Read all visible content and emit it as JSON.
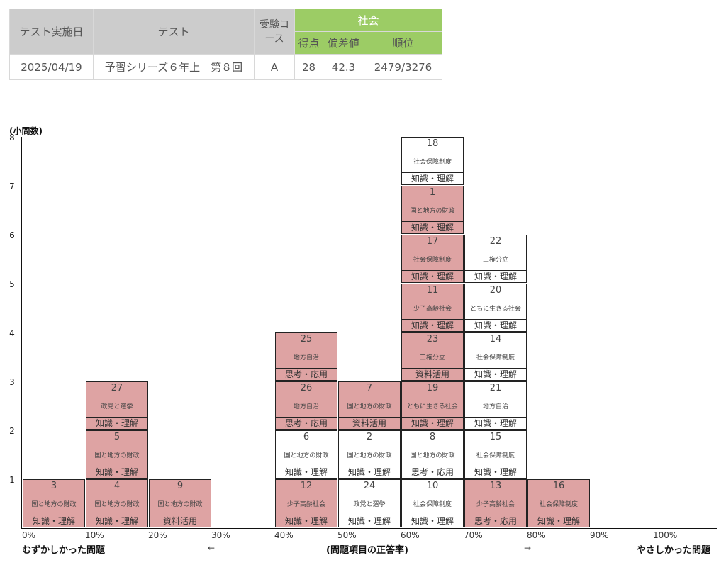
{
  "summary": {
    "headers": {
      "date": "テスト実施日",
      "test": "テスト",
      "course": "受験コース",
      "subject": "社会",
      "score": "得点",
      "deviation": "偏差値",
      "rank": "順位"
    },
    "row": {
      "date": "2025/04/19",
      "test": "予習シリーズ６年上　第８回",
      "course": "A",
      "score": "28",
      "deviation": "42.3",
      "rank": "2479/3276"
    },
    "colors": {
      "header_gray": "#cccccc",
      "header_green": "#9ccc65"
    }
  },
  "chart_data": {
    "type": "stacked-box-histogram",
    "ylabel": "(小問数)",
    "y_ticks": [
      "1",
      "2",
      "3",
      "4",
      "5",
      "6",
      "7",
      "8"
    ],
    "x_ticks": [
      "0%",
      "10%",
      "20%",
      "30%",
      "40%",
      "50%",
      "60%",
      "70%",
      "80%",
      "90%",
      "100%"
    ],
    "footer": {
      "left": "むずかしかった問題",
      "center": "(問題項目の正答率)",
      "right": "やさしかった問題",
      "arrow_left": "←",
      "arrow_right": "→"
    },
    "colors": {
      "wrong": "#dea3a3",
      "correct": "#ffffff"
    },
    "bins": [
      {
        "bin": "0%",
        "items": [
          {
            "num": "3",
            "topic": "国と地方の財政",
            "category": "知識・理解",
            "status": "wrong"
          }
        ]
      },
      {
        "bin": "10%",
        "items": [
          {
            "num": "4",
            "topic": "国と地方の財政",
            "category": "知識・理解",
            "status": "wrong"
          },
          {
            "num": "5",
            "topic": "国と地方の財政",
            "category": "知識・理解",
            "status": "wrong"
          },
          {
            "num": "27",
            "topic": "政党と選挙",
            "category": "知識・理解",
            "status": "wrong"
          }
        ]
      },
      {
        "bin": "20%",
        "items": [
          {
            "num": "9",
            "topic": "国と地方の財政",
            "category": "資料活用",
            "status": "wrong"
          }
        ]
      },
      {
        "bin": "30%",
        "items": []
      },
      {
        "bin": "40%",
        "items": [
          {
            "num": "12",
            "topic": "少子高齢社会",
            "category": "知識・理解",
            "status": "wrong"
          },
          {
            "num": "6",
            "topic": "国と地方の財政",
            "category": "知識・理解",
            "status": "correct"
          },
          {
            "num": "26",
            "topic": "地方自治",
            "category": "思考・応用",
            "status": "wrong"
          },
          {
            "num": "25",
            "topic": "地方自治",
            "category": "思考・応用",
            "status": "wrong"
          }
        ]
      },
      {
        "bin": "50%",
        "items": [
          {
            "num": "24",
            "topic": "政党と選挙",
            "category": "知識・理解",
            "status": "correct"
          },
          {
            "num": "2",
            "topic": "国と地方の財政",
            "category": "知識・理解",
            "status": "correct"
          },
          {
            "num": "7",
            "topic": "国と地方の財政",
            "category": "資料活用",
            "status": "wrong"
          }
        ]
      },
      {
        "bin": "60%",
        "items": [
          {
            "num": "10",
            "topic": "社会保障制度",
            "category": "知識・理解",
            "status": "correct"
          },
          {
            "num": "8",
            "topic": "国と地方の財政",
            "category": "思考・応用",
            "status": "correct"
          },
          {
            "num": "19",
            "topic": "ともに生きる社会",
            "category": "知識・理解",
            "status": "wrong"
          },
          {
            "num": "23",
            "topic": "三権分立",
            "category": "資料活用",
            "status": "wrong"
          },
          {
            "num": "11",
            "topic": "少子高齢社会",
            "category": "知識・理解",
            "status": "wrong"
          },
          {
            "num": "17",
            "topic": "社会保障制度",
            "category": "知識・理解",
            "status": "wrong"
          },
          {
            "num": "1",
            "topic": "国と地方の財政",
            "category": "知識・理解",
            "status": "wrong"
          },
          {
            "num": "18",
            "topic": "社会保障制度",
            "category": "知識・理解",
            "status": "correct"
          }
        ]
      },
      {
        "bin": "70%",
        "items": [
          {
            "num": "13",
            "topic": "少子高齢社会",
            "category": "思考・応用",
            "status": "wrong"
          },
          {
            "num": "15",
            "topic": "社会保障制度",
            "category": "知識・理解",
            "status": "correct"
          },
          {
            "num": "21",
            "topic": "地方自治",
            "category": "知識・理解",
            "status": "correct"
          },
          {
            "num": "14",
            "topic": "社会保障制度",
            "category": "知識・理解",
            "status": "correct"
          },
          {
            "num": "20",
            "topic": "ともに生きる社会",
            "category": "知識・理解",
            "status": "correct"
          },
          {
            "num": "22",
            "topic": "三権分立",
            "category": "知識・理解",
            "status": "correct"
          }
        ]
      },
      {
        "bin": "80%",
        "items": [
          {
            "num": "16",
            "topic": "社会保障制度",
            "category": "知識・理解",
            "status": "wrong"
          }
        ]
      },
      {
        "bin": "90%",
        "items": []
      }
    ]
  }
}
